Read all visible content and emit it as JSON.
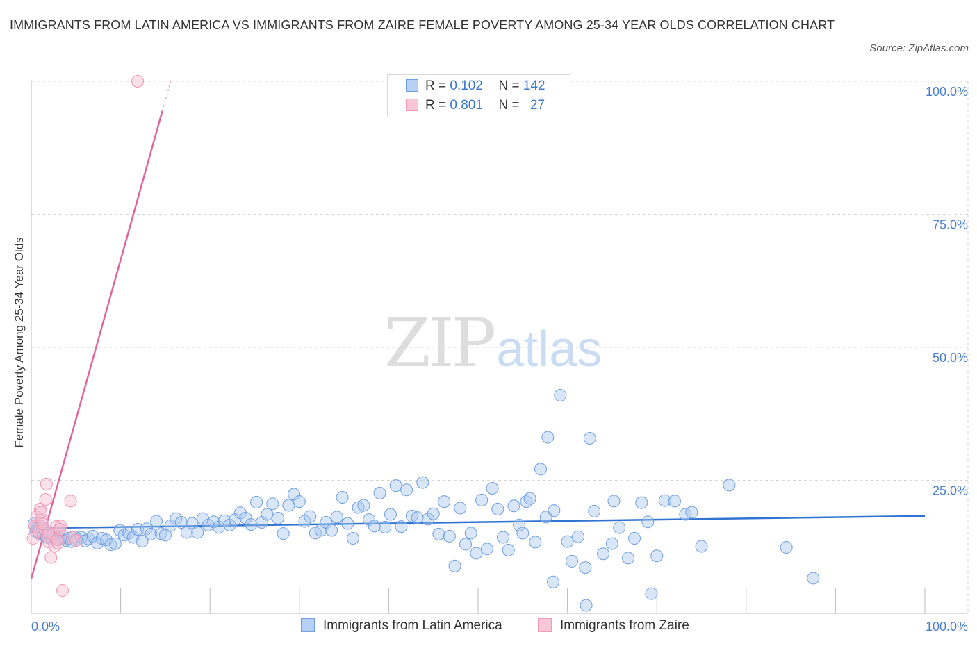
{
  "title": "IMMIGRANTS FROM LATIN AMERICA VS IMMIGRANTS FROM ZAIRE FEMALE POVERTY AMONG 25-34 YEAR OLDS CORRELATION CHART",
  "source_label": "Source: ",
  "source_name": "ZipAtlas.com",
  "watermark": {
    "zip": "ZIP",
    "atlas": "atlas"
  },
  "colors": {
    "blue": "#4a86e0",
    "blue_fill": "#a9c8f0",
    "pink": "#e56b9a",
    "pink_fill": "#f6bed0",
    "axis_text": "#4a7fd0",
    "grid": "#d5d5d5"
  },
  "legend_top": {
    "r_label": "R =",
    "n_label": "N =",
    "rows": [
      {
        "r": "0.102",
        "n": "142"
      },
      {
        "r": "0.801",
        "n": "27"
      }
    ]
  },
  "chart_data": {
    "type": "scatter",
    "title": "IMMIGRANTS FROM LATIN AMERICA VS IMMIGRANTS FROM ZAIRE FEMALE POVERTY AMONG 25-34 YEAR OLDS CORRELATION CHART",
    "xlabel": "",
    "ylabel": "Female Poverty Among 25-34 Year Olds",
    "xlim": [
      0,
      100
    ],
    "ylim": [
      0,
      100
    ],
    "x_tick_labels": [
      "0.0%",
      "100.0%"
    ],
    "y_ticks": [
      25,
      50,
      75,
      100
    ],
    "y_tick_labels": [
      "25.0%",
      "50.0%",
      "75.0%",
      "100.0%"
    ],
    "grid": true,
    "legend_position": "bottom",
    "series": [
      {
        "name": "Immigrants from Latin America",
        "color": "#4a86e0",
        "R": 0.102,
        "N": 142,
        "trend": {
          "x": [
            0,
            100
          ],
          "y": [
            16.0,
            18.3
          ]
        },
        "points": [
          [
            0.3,
            16.8
          ],
          [
            0.5,
            15.4
          ],
          [
            0.7,
            16.1
          ],
          [
            0.9,
            15.0
          ],
          [
            1.1,
            16.4
          ],
          [
            1.3,
            14.8
          ],
          [
            1.5,
            15.6
          ],
          [
            1.7,
            14.3
          ],
          [
            1.9,
            15.2
          ],
          [
            2.1,
            14.6
          ],
          [
            2.3,
            13.9
          ],
          [
            2.5,
            15.1
          ],
          [
            2.7,
            14.2
          ],
          [
            3.0,
            13.8
          ],
          [
            3.3,
            14.0
          ],
          [
            3.6,
            14.5
          ],
          [
            3.9,
            13.7
          ],
          [
            4.2,
            14.1
          ],
          [
            4.5,
            13.5
          ],
          [
            4.8,
            14.4
          ],
          [
            5.2,
            13.9
          ],
          [
            5.6,
            14.3
          ],
          [
            6.0,
            13.6
          ],
          [
            6.4,
            14.0
          ],
          [
            6.9,
            14.5
          ],
          [
            7.4,
            13.2
          ],
          [
            7.9,
            14.1
          ],
          [
            8.4,
            13.8
          ],
          [
            8.9,
            12.9
          ],
          [
            9.4,
            13.1
          ],
          [
            9.9,
            15.6
          ],
          [
            10.4,
            14.7
          ],
          [
            10.9,
            15.1
          ],
          [
            11.4,
            14.3
          ],
          [
            11.9,
            15.8
          ],
          [
            12.4,
            13.6
          ],
          [
            12.9,
            15.9
          ],
          [
            13.4,
            14.9
          ],
          [
            14.0,
            17.3
          ],
          [
            14.5,
            15.0
          ],
          [
            15.0,
            14.7
          ],
          [
            15.6,
            16.5
          ],
          [
            16.2,
            17.8
          ],
          [
            16.8,
            17.1
          ],
          [
            17.4,
            15.2
          ],
          [
            18.0,
            16.9
          ],
          [
            18.6,
            15.2
          ],
          [
            19.2,
            17.8
          ],
          [
            19.8,
            16.6
          ],
          [
            20.4,
            17.2
          ],
          [
            21.0,
            16.2
          ],
          [
            21.6,
            17.4
          ],
          [
            22.2,
            16.6
          ],
          [
            22.8,
            17.6
          ],
          [
            23.4,
            18.9
          ],
          [
            24.0,
            17.9
          ],
          [
            24.6,
            16.7
          ],
          [
            25.2,
            20.9
          ],
          [
            25.8,
            17.1
          ],
          [
            26.4,
            18.6
          ],
          [
            27.0,
            20.6
          ],
          [
            27.6,
            17.9
          ],
          [
            28.2,
            15.0
          ],
          [
            28.8,
            20.3
          ],
          [
            29.4,
            22.4
          ],
          [
            30.0,
            21.0
          ],
          [
            30.6,
            17.3
          ],
          [
            31.2,
            18.2
          ],
          [
            31.8,
            15.1
          ],
          [
            32.4,
            15.6
          ],
          [
            33.0,
            17.1
          ],
          [
            33.6,
            15.6
          ],
          [
            34.2,
            18.1
          ],
          [
            34.8,
            21.8
          ],
          [
            35.4,
            16.9
          ],
          [
            36.0,
            14.1
          ],
          [
            36.6,
            19.9
          ],
          [
            37.2,
            20.3
          ],
          [
            37.8,
            17.6
          ],
          [
            38.4,
            16.4
          ],
          [
            39.0,
            22.6
          ],
          [
            39.6,
            16.2
          ],
          [
            40.2,
            18.6
          ],
          [
            40.8,
            24.0
          ],
          [
            41.4,
            16.3
          ],
          [
            42.0,
            23.2
          ],
          [
            42.6,
            18.3
          ],
          [
            43.2,
            18.0
          ],
          [
            43.8,
            24.6
          ],
          [
            44.4,
            17.7
          ],
          [
            45.0,
            18.7
          ],
          [
            45.6,
            14.9
          ],
          [
            46.2,
            21.0
          ],
          [
            46.8,
            14.5
          ],
          [
            47.4,
            8.9
          ],
          [
            48.0,
            19.8
          ],
          [
            48.6,
            13.0
          ],
          [
            49.2,
            15.1
          ],
          [
            49.8,
            11.3
          ],
          [
            50.4,
            21.3
          ],
          [
            51.0,
            12.1
          ],
          [
            51.6,
            23.5
          ],
          [
            52.2,
            19.6
          ],
          [
            52.8,
            14.3
          ],
          [
            53.4,
            11.9
          ],
          [
            54.0,
            20.2
          ],
          [
            54.6,
            16.6
          ],
          [
            55.0,
            15.1
          ],
          [
            55.4,
            21.0
          ],
          [
            55.8,
            21.6
          ],
          [
            56.4,
            13.4
          ],
          [
            57.0,
            27.1
          ],
          [
            57.6,
            18.1
          ],
          [
            57.8,
            33.1
          ],
          [
            58.5,
            19.3
          ],
          [
            59.2,
            41.0
          ],
          [
            60.0,
            13.5
          ],
          [
            60.5,
            9.8
          ],
          [
            61.2,
            14.4
          ],
          [
            62.0,
            8.6
          ],
          [
            62.5,
            32.9
          ],
          [
            63.0,
            19.2
          ],
          [
            64.0,
            11.2
          ],
          [
            65.2,
            21.1
          ],
          [
            65.8,
            16.1
          ],
          [
            66.8,
            10.4
          ],
          [
            67.5,
            14.1
          ],
          [
            68.3,
            20.8
          ],
          [
            69.0,
            17.2
          ],
          [
            70.0,
            10.8
          ],
          [
            70.9,
            21.2
          ],
          [
            72.0,
            21.1
          ],
          [
            73.2,
            18.6
          ],
          [
            73.9,
            19.0
          ],
          [
            75.0,
            12.6
          ],
          [
            78.1,
            24.1
          ],
          [
            84.5,
            12.4
          ],
          [
            87.5,
            6.6
          ],
          [
            62.1,
            1.5
          ],
          [
            58.4,
            5.9
          ],
          [
            69.4,
            3.7
          ],
          [
            65.0,
            13.1
          ]
        ]
      },
      {
        "name": "Immigrants from Zaire",
        "color": "#e56b9a",
        "R": 0.801,
        "N": 27,
        "trend": {
          "x": [
            0,
            15.6
          ],
          "y": [
            6.5,
            100
          ]
        },
        "points": [
          [
            0.2,
            14.1
          ],
          [
            0.4,
            16.3
          ],
          [
            0.6,
            18.1
          ],
          [
            0.8,
            15.4
          ],
          [
            1.0,
            19.6
          ],
          [
            1.2,
            17.6
          ],
          [
            1.4,
            15.9
          ],
          [
            1.6,
            21.4
          ],
          [
            1.7,
            24.3
          ],
          [
            1.8,
            14.5
          ],
          [
            2.0,
            13.4
          ],
          [
            2.2,
            10.5
          ],
          [
            2.4,
            14.9
          ],
          [
            2.6,
            12.6
          ],
          [
            2.8,
            16.3
          ],
          [
            3.0,
            13.2
          ],
          [
            3.3,
            16.4
          ],
          [
            3.5,
            4.3
          ],
          [
            4.4,
            21.1
          ],
          [
            4.6,
            14.3
          ],
          [
            5.0,
            13.7
          ],
          [
            11.9,
            100.0
          ],
          [
            1.1,
            19.0
          ],
          [
            1.9,
            15.2
          ],
          [
            2.9,
            13.9
          ],
          [
            3.2,
            15.8
          ],
          [
            1.3,
            16.8
          ]
        ]
      }
    ]
  },
  "legend_bottom": [
    {
      "label": "Immigrants from Latin America"
    },
    {
      "label": "Immigrants from Zaire"
    }
  ]
}
